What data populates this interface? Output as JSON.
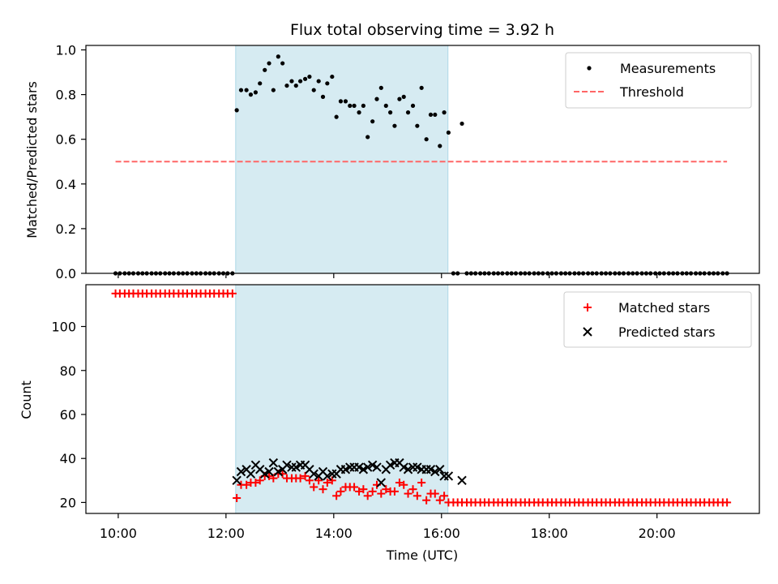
{
  "title": "Flux total observing time = 3.92 h",
  "colors": {
    "threshold": "#ff6666",
    "span_fill": "#add8e6",
    "matched": "#ff0000",
    "predicted": "#000000",
    "measurements": "#000000"
  },
  "x_axis": {
    "label": "Time (UTC)",
    "range_hours": [
      9.4,
      21.9
    ],
    "ticks": [
      {
        "value": 10,
        "label": "10:00"
      },
      {
        "value": 12,
        "label": "12:00"
      },
      {
        "value": 14,
        "label": "14:00"
      },
      {
        "value": 16,
        "label": "16:00"
      },
      {
        "value": 18,
        "label": "18:00"
      },
      {
        "value": 20,
        "label": "20:00"
      }
    ]
  },
  "chart_data": [
    {
      "type": "scatter",
      "ylabel": "Matched/Predicted stars",
      "ylim": [
        0,
        1.02
      ],
      "yticks": [
        "0.0",
        "0.2",
        "0.4",
        "0.6",
        "0.8",
        "1.0"
      ],
      "grid": false,
      "legend_position": "top-right",
      "highlight_span": [
        12.18,
        16.12
      ],
      "threshold": {
        "name": "Threshold",
        "value": 0.5,
        "x_range": [
          9.95,
          21.3
        ]
      },
      "series": [
        {
          "name": "Measurements",
          "marker": "dot",
          "x": [
            9.95,
            10.03,
            10.12,
            10.2,
            10.28,
            10.37,
            10.45,
            10.53,
            10.62,
            10.7,
            10.78,
            10.87,
            10.95,
            11.03,
            11.12,
            11.2,
            11.28,
            11.37,
            11.45,
            11.53,
            11.62,
            11.7,
            11.78,
            11.87,
            11.95,
            12.03,
            12.12,
            12.2,
            12.28,
            12.38,
            12.46,
            12.55,
            12.63,
            12.72,
            12.8,
            12.88,
            12.97,
            13.05,
            13.13,
            13.22,
            13.3,
            13.38,
            13.47,
            13.55,
            13.63,
            13.72,
            13.8,
            13.88,
            13.97,
            14.05,
            14.13,
            14.22,
            14.3,
            14.38,
            14.47,
            14.55,
            14.63,
            14.72,
            14.8,
            14.88,
            14.97,
            15.05,
            15.13,
            15.22,
            15.3,
            15.38,
            15.47,
            15.55,
            15.63,
            15.72,
            15.8,
            15.88,
            15.97,
            16.05,
            16.13,
            16.22,
            16.3,
            16.38,
            16.47,
            16.55,
            16.63,
            16.72,
            16.8,
            16.88,
            16.97,
            17.05,
            17.13,
            17.22,
            17.3,
            17.38,
            17.47,
            17.55,
            17.63,
            17.72,
            17.8,
            17.88,
            17.97,
            18.05,
            18.13,
            18.22,
            18.3,
            18.38,
            18.47,
            18.55,
            18.63,
            18.72,
            18.8,
            18.88,
            18.97,
            19.05,
            19.13,
            19.22,
            19.3,
            19.38,
            19.47,
            19.55,
            19.63,
            19.72,
            19.8,
            19.88,
            19.97,
            20.05,
            20.13,
            20.22,
            20.3,
            20.38,
            20.47,
            20.55,
            20.63,
            20.72,
            20.8,
            20.88,
            20.97,
            21.05,
            21.13,
            21.22,
            21.3
          ],
          "y": [
            0,
            0,
            0,
            0,
            0,
            0,
            0,
            0,
            0,
            0,
            0,
            0,
            0,
            0,
            0,
            0,
            0,
            0,
            0,
            0,
            0,
            0,
            0,
            0,
            0,
            0,
            0,
            0.73,
            0.82,
            0.82,
            0.8,
            0.81,
            0.85,
            0.91,
            0.94,
            0.82,
            0.97,
            0.94,
            0.84,
            0.86,
            0.84,
            0.86,
            0.87,
            0.88,
            0.82,
            0.86,
            0.79,
            0.85,
            0.88,
            0.7,
            0.77,
            0.77,
            0.75,
            0.75,
            0.72,
            0.75,
            0.61,
            0.68,
            0.78,
            0.83,
            0.75,
            0.72,
            0.66,
            0.78,
            0.79,
            0.72,
            0.75,
            0.66,
            0.83,
            0.6,
            0.71,
            0.71,
            0.57,
            0.72,
            0.63,
            0,
            0,
            0.67,
            0,
            0,
            0,
            0,
            0,
            0,
            0,
            0,
            0,
            0,
            0,
            0,
            0,
            0,
            0,
            0,
            0,
            0,
            0,
            0,
            0,
            0,
            0,
            0,
            0,
            0,
            0,
            0,
            0,
            0,
            0,
            0,
            0,
            0,
            0,
            0,
            0,
            0,
            0,
            0,
            0,
            0,
            0,
            0,
            0,
            0,
            0,
            0,
            0,
            0,
            0,
            0,
            0,
            0,
            0,
            0,
            0,
            0,
            0
          ]
        }
      ]
    },
    {
      "type": "scatter",
      "xlabel": "Time (UTC)",
      "ylabel": "Count",
      "ylim": [
        15,
        119
      ],
      "yticks": [
        "20",
        "40",
        "60",
        "80",
        "100"
      ],
      "grid": false,
      "legend_position": "top-right",
      "highlight_span": [
        12.18,
        16.12
      ],
      "series": [
        {
          "name": "Matched stars",
          "marker": "plus",
          "x": [
            9.95,
            10.03,
            10.12,
            10.2,
            10.28,
            10.37,
            10.45,
            10.53,
            10.62,
            10.7,
            10.78,
            10.87,
            10.95,
            11.03,
            11.12,
            11.2,
            11.28,
            11.37,
            11.45,
            11.53,
            11.62,
            11.7,
            11.78,
            11.87,
            11.95,
            12.03,
            12.12,
            12.2,
            12.28,
            12.38,
            12.46,
            12.55,
            12.63,
            12.72,
            12.8,
            12.88,
            12.97,
            13.05,
            13.13,
            13.22,
            13.3,
            13.38,
            13.47,
            13.55,
            13.63,
            13.72,
            13.8,
            13.88,
            13.97,
            14.05,
            14.13,
            14.22,
            14.3,
            14.38,
            14.47,
            14.55,
            14.63,
            14.72,
            14.8,
            14.88,
            14.97,
            15.05,
            15.13,
            15.22,
            15.3,
            15.38,
            15.47,
            15.55,
            15.63,
            15.72,
            15.8,
            15.88,
            15.97,
            16.05,
            16.13,
            16.22,
            16.3,
            16.38,
            16.47,
            16.55,
            16.63,
            16.72,
            16.8,
            16.88,
            16.97,
            17.05,
            17.13,
            17.22,
            17.3,
            17.38,
            17.47,
            17.55,
            17.63,
            17.72,
            17.8,
            17.88,
            17.97,
            18.05,
            18.13,
            18.22,
            18.3,
            18.38,
            18.47,
            18.55,
            18.63,
            18.72,
            18.8,
            18.88,
            18.97,
            19.05,
            19.13,
            19.22,
            19.3,
            19.38,
            19.47,
            19.55,
            19.63,
            19.72,
            19.8,
            19.88,
            19.97,
            20.05,
            20.13,
            20.22,
            20.3,
            20.38,
            20.47,
            20.55,
            20.63,
            20.72,
            20.8,
            20.88,
            20.97,
            21.05,
            21.13,
            21.22,
            21.3
          ],
          "y": [
            115,
            115,
            115,
            115,
            115,
            115,
            115,
            115,
            115,
            115,
            115,
            115,
            115,
            115,
            115,
            115,
            115,
            115,
            115,
            115,
            115,
            115,
            115,
            115,
            115,
            115,
            115,
            22,
            28,
            28,
            29,
            29,
            30,
            32,
            32,
            31,
            33,
            33,
            31,
            31,
            31,
            31,
            32,
            30,
            27,
            30,
            26,
            29,
            30,
            23,
            25,
            27,
            27,
            27,
            25,
            26,
            23,
            25,
            28,
            24,
            26,
            25,
            25,
            29,
            28,
            24,
            26,
            23,
            29,
            21,
            24,
            24,
            21,
            23,
            20,
            20,
            20,
            20,
            20,
            20,
            20,
            20,
            20,
            20,
            20,
            20,
            20,
            20,
            20,
            20,
            20,
            20,
            20,
            20,
            20,
            20,
            20,
            20,
            20,
            20,
            20,
            20,
            20,
            20,
            20,
            20,
            20,
            20,
            20,
            20,
            20,
            20,
            20,
            20,
            20,
            20,
            20,
            20,
            20,
            20,
            20,
            20,
            20,
            20,
            20,
            20,
            20,
            20,
            20,
            20,
            20,
            20,
            20,
            20,
            20,
            20,
            20
          ]
        },
        {
          "name": "Predicted stars",
          "marker": "x",
          "x": [
            12.2,
            12.28,
            12.38,
            12.46,
            12.55,
            12.63,
            12.72,
            12.8,
            12.88,
            12.97,
            13.05,
            13.13,
            13.22,
            13.3,
            13.38,
            13.47,
            13.55,
            13.63,
            13.72,
            13.8,
            13.88,
            13.97,
            14.05,
            14.13,
            14.22,
            14.3,
            14.38,
            14.47,
            14.55,
            14.63,
            14.72,
            14.8,
            14.88,
            14.97,
            15.05,
            15.13,
            15.22,
            15.3,
            15.38,
            15.47,
            15.55,
            15.63,
            15.72,
            15.8,
            15.88,
            15.97,
            16.05,
            16.13,
            16.38
          ],
          "y": [
            30,
            34,
            35,
            33,
            37,
            35,
            33,
            34,
            38,
            34,
            35,
            37,
            36,
            36,
            37,
            37,
            35,
            33,
            32,
            34,
            32,
            33,
            33,
            35,
            35,
            36,
            36,
            36,
            35,
            36,
            37,
            36,
            29,
            35,
            37,
            38,
            38,
            36,
            35,
            36,
            36,
            35,
            35,
            35,
            34,
            35,
            32,
            32,
            30
          ]
        }
      ]
    }
  ]
}
